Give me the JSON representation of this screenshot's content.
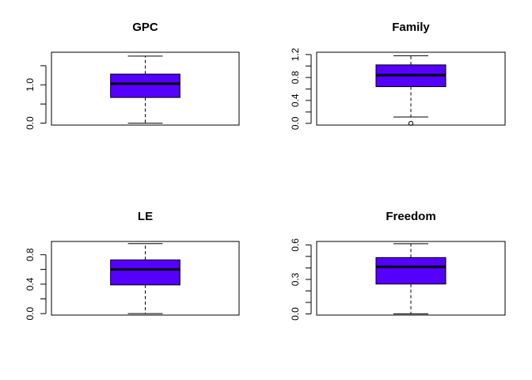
{
  "colors": {
    "box_fill": "#5500ff",
    "line": "#000000",
    "background": "#ffffff"
  },
  "chart_data": [
    {
      "type": "box",
      "title": "GPC",
      "ylim": [
        -0.05,
        1.85
      ],
      "yticks": [
        0.0,
        0.5,
        1.0,
        1.5
      ],
      "ytick_labels": [
        "0.0",
        "",
        "1.0",
        ""
      ],
      "stats": {
        "min": 0.0,
        "q1": 0.67,
        "median": 1.03,
        "q3": 1.28,
        "max": 1.75
      },
      "outliers": []
    },
    {
      "type": "box",
      "title": "Family",
      "ylim": [
        -0.03,
        1.24
      ],
      "yticks": [
        0.0,
        0.2,
        0.4,
        0.6,
        0.8,
        1.0,
        1.2
      ],
      "ytick_labels": [
        "0.0",
        "",
        "0.4",
        "",
        "0.8",
        "",
        "1.2"
      ],
      "stats": {
        "min": 0.11,
        "q1": 0.64,
        "median": 0.84,
        "q3": 1.02,
        "max": 1.18
      },
      "outliers": [
        0.0
      ]
    },
    {
      "type": "box",
      "title": "LE",
      "ylim": [
        -0.02,
        0.98
      ],
      "yticks": [
        0.0,
        0.2,
        0.4,
        0.6,
        0.8
      ],
      "ytick_labels": [
        "0.0",
        "",
        "0.4",
        "",
        "0.8"
      ],
      "stats": {
        "min": 0.0,
        "q1": 0.39,
        "median": 0.6,
        "q3": 0.73,
        "max": 0.95
      },
      "outliers": []
    },
    {
      "type": "box",
      "title": "Freedom",
      "ylim": [
        -0.01,
        0.63
      ],
      "yticks": [
        0.0,
        0.1,
        0.2,
        0.3,
        0.4,
        0.5,
        0.6
      ],
      "ytick_labels": [
        "0.0",
        "",
        "",
        "0.3",
        "",
        "",
        "0.6"
      ],
      "stats": {
        "min": 0.0,
        "q1": 0.26,
        "median": 0.41,
        "q3": 0.49,
        "max": 0.61
      },
      "outliers": []
    }
  ]
}
